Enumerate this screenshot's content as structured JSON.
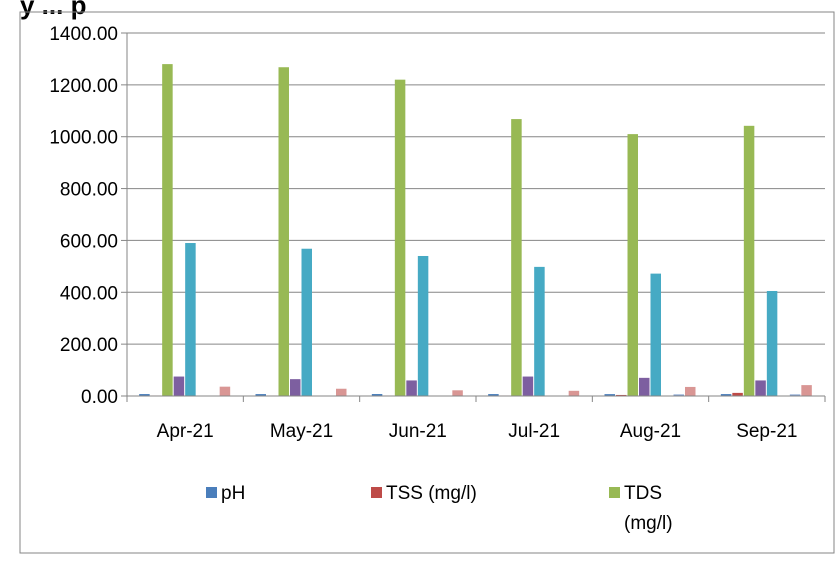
{
  "page": {
    "clipped_title": "y   ...   p"
  },
  "chart_data": {
    "type": "bar",
    "title": "",
    "xlabel": "",
    "ylabel": "",
    "ylim": [
      0,
      1400
    ],
    "y_ticks": [
      "0.00",
      "200.00",
      "400.00",
      "600.00",
      "800.00",
      "1000.00",
      "1200.00",
      "1400.00"
    ],
    "grid": true,
    "legend_placement": "bottom",
    "categories": [
      "Apr-21",
      "May-21",
      "Jun-21",
      "Jul-21",
      "Aug-21",
      "Sep-21"
    ],
    "series": [
      {
        "name": "pH",
        "color": "#4a7ebb",
        "values": [
          7.5,
          7.4,
          7.6,
          7.5,
          7.3,
          7.4
        ]
      },
      {
        "name": "TSS (mg/l)",
        "color": "#be4b48",
        "values": [
          2,
          2,
          2,
          2,
          4,
          12
        ]
      },
      {
        "name": "TDS (mg/l)",
        "color": "#98b954",
        "values": [
          1280,
          1268,
          1220,
          1068,
          1010,
          1042
        ]
      },
      {
        "color": "#7d5fa0",
        "values": [
          75,
          65,
          60,
          75,
          70,
          60
        ]
      },
      {
        "color": "#46aac4",
        "values": [
          590,
          568,
          540,
          498,
          472,
          405
        ]
      },
      {
        "color": "#f79646",
        "values": [
          0,
          0,
          0,
          0,
          0,
          0
        ]
      },
      {
        "color": "#7f9fcf",
        "values": [
          0,
          0,
          0,
          0,
          6,
          6
        ]
      },
      {
        "color": "#d99694",
        "values": [
          36,
          28,
          22,
          20,
          35,
          42
        ]
      }
    ],
    "legend": [
      {
        "label_lines": [
          "pH"
        ],
        "color": "#4a7ebb"
      },
      {
        "label_lines": [
          "TSS (mg/l)"
        ],
        "color": "#be4b48"
      },
      {
        "label_lines": [
          "TDS",
          "(mg/l)"
        ],
        "color": "#98b954"
      }
    ]
  }
}
